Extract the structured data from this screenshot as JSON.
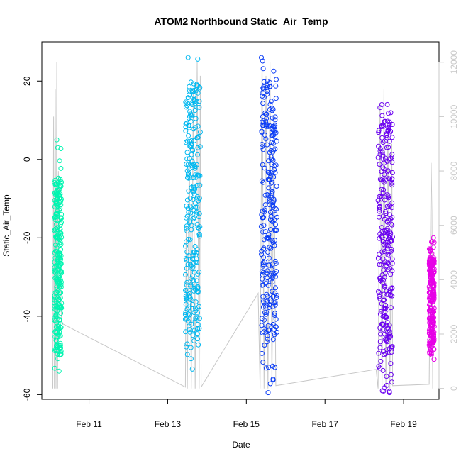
{
  "chart_data": {
    "type": "scatter",
    "title": "ATOM2 Northbound Static_Air_Temp",
    "xlabel": "Date",
    "ylabel": "Static_Air_Temp",
    "y2label": "",
    "x_ticks": [
      "Feb 11",
      "Feb 13",
      "Feb 15",
      "Feb 17",
      "Feb 19"
    ],
    "x_tick_values": [
      11,
      13,
      15,
      17,
      19
    ],
    "xlim": [
      9.8,
      19.9
    ],
    "y_ticks": [
      "-60",
      "-40",
      "-20",
      "0",
      "20"
    ],
    "y_tick_values": [
      -60,
      -40,
      -20,
      0,
      20
    ],
    "ylim": [
      -61.2,
      30
    ],
    "y2_ticks": [
      "0",
      "2000",
      "4000",
      "6000",
      "8000",
      "10000",
      "12000"
    ],
    "y2_tick_values": [
      0,
      2000,
      4000,
      6000,
      8000,
      10000,
      12000
    ],
    "y2lim": [
      -400,
      12750
    ],
    "point_shape": "open-circle",
    "grid": false,
    "series": [
      {
        "color": "#00f5b0",
        "x_range": [
          10.12,
          10.3
        ],
        "y_range": [
          -54,
          5
        ],
        "y_dense": [
          -50,
          -5
        ]
      },
      {
        "color": "#00b8f0",
        "x_range": [
          13.45,
          13.83
        ],
        "y_range": [
          -53.5,
          26
        ],
        "y_dense": [
          -45,
          20
        ]
      },
      {
        "color": "#0a3cf5",
        "x_range": [
          15.38,
          15.78
        ],
        "y_range": [
          -59.5,
          26
        ],
        "y_dense": [
          -45,
          20
        ]
      },
      {
        "color": "#6a00f0",
        "x_range": [
          18.35,
          18.72
        ],
        "y_range": [
          -59.5,
          14
        ],
        "y_dense": [
          -50,
          10
        ]
      },
      {
        "color": "#e600e6",
        "x_range": [
          19.65,
          19.78
        ],
        "y_range": [
          -51,
          -20
        ],
        "y_dense": [
          -48,
          -25
        ]
      }
    ],
    "altitude_line": {
      "color": "#c8c8c8",
      "points": [
        [
          10.08,
          0
        ],
        [
          10.1,
          10000
        ],
        [
          10.12,
          0
        ],
        [
          10.14,
          11000
        ],
        [
          10.16,
          0
        ],
        [
          10.18,
          12000
        ],
        [
          10.2,
          0
        ],
        [
          10.22,
          8000
        ],
        [
          10.3,
          2400
        ],
        [
          13.45,
          50
        ],
        [
          13.47,
          6000
        ],
        [
          13.5,
          0
        ],
        [
          13.55,
          9000
        ],
        [
          13.6,
          0
        ],
        [
          13.65,
          11000
        ],
        [
          13.7,
          0
        ],
        [
          13.75,
          12000
        ],
        [
          13.8,
          0
        ],
        [
          13.83,
          11500
        ],
        [
          13.85,
          50
        ],
        [
          15.3,
          3500
        ],
        [
          15.35,
          0
        ],
        [
          15.4,
          12000
        ],
        [
          15.45,
          0
        ],
        [
          15.5,
          11500
        ],
        [
          15.55,
          0
        ],
        [
          15.6,
          12000
        ],
        [
          15.65,
          0
        ],
        [
          15.7,
          10000
        ],
        [
          15.75,
          100
        ],
        [
          18.3,
          700
        ],
        [
          18.35,
          0
        ],
        [
          18.4,
          10500
        ],
        [
          18.45,
          0
        ],
        [
          18.5,
          11000
        ],
        [
          18.55,
          0
        ],
        [
          18.6,
          9500
        ],
        [
          18.65,
          0
        ],
        [
          18.7,
          9000
        ],
        [
          18.72,
          100
        ],
        [
          19.65,
          150
        ],
        [
          19.7,
          8300
        ],
        [
          19.72,
          6500
        ],
        [
          19.74,
          0
        ]
      ]
    }
  }
}
